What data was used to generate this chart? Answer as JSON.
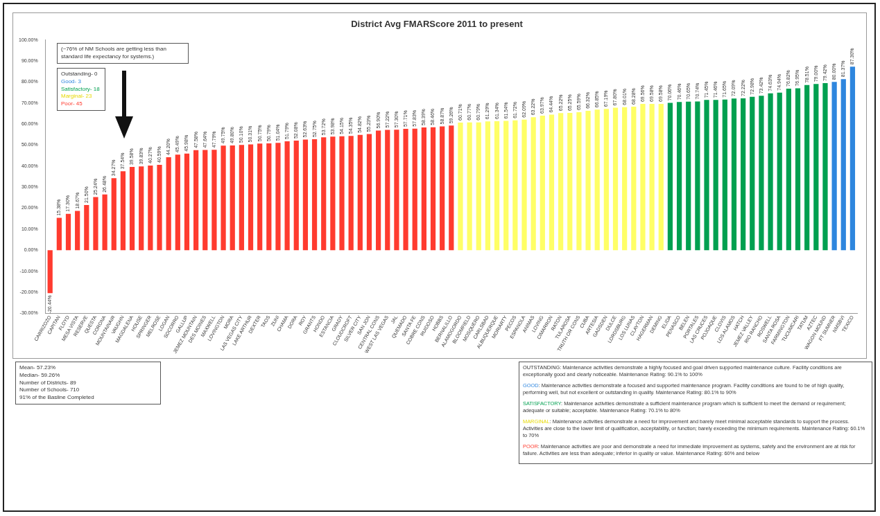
{
  "chart_data": {
    "type": "bar",
    "title": "District Avg FMARScore 2011 to present",
    "categories": [
      "CARRIZOZO",
      "CAPITAN",
      "FLOYD",
      "MESA VISTA",
      "RESERVE",
      "QUESTA",
      "CORONA",
      "MOUNTAINAIR",
      "VAUGHN",
      "MAGDALENA",
      "HOUSE",
      "SPRINGER",
      "MELROSE",
      "LOGAN",
      "SOCORRO",
      "GALLUP",
      "JEMEZ MOUNTAIN",
      "DES MOINES",
      "MAXWELL",
      "LOVINGTON",
      "MORA",
      "LAS VEGAS CITY",
      "LAKE ARTHUR",
      "DEXTER",
      "TAOS",
      "ZUNI",
      "CHAMA",
      "DORA",
      "ROY",
      "GRANTS",
      "HONDO",
      "ESTANCIA",
      "GRADY",
      "CLOUDCROFT",
      "SILVER CITY",
      "SAN JON",
      "CENTRAL CONS",
      "WEST LAS VEGAS",
      "JAL",
      "QUEMADO",
      "SANTA FE",
      "COBRE CONS",
      "RUIDOSO",
      "HOBBS",
      "BERNALILLO",
      "ALAMOGORDO",
      "BLOOMFIELD",
      "MOSQUERO",
      "CARLSBAD",
      "ALBUQUERQUE",
      "MORIARTY",
      "PECOS",
      "ESPANOLA",
      "ANIMAS",
      "LOVING",
      "CIMARRON",
      "RATON",
      "TULAROSA",
      "TRUTH OR CONS",
      "CUBA",
      "ARTESIA",
      "GADSDEN",
      "DULCE",
      "LORDSBURG",
      "LOS LUNAS",
      "CLAYTON",
      "HAGERMAN",
      "DEMING",
      "ELIDA",
      "PENASCO",
      "BELEN",
      "PORTALES",
      "LAS CRUCES",
      "POJOAQUE",
      "CLOVIS",
      "LOS ALAMOS",
      "HATCH",
      "JEMEZ VALLEY",
      "RIO RANCHO",
      "ROSWELL",
      "SANTA ROSA",
      "FARMINGTON",
      "TUCUMCARI",
      "TATUM",
      "AZTEC",
      "WAGON MOUND",
      "FT SUMNER",
      "NMSBVI",
      "TEXICO"
    ],
    "values": [
      -20.44,
      15.38,
      17.3,
      18.67,
      21.5,
      25.24,
      26.48,
      34.27,
      37.54,
      39.58,
      39.83,
      40.27,
      40.59,
      44.2,
      45.49,
      45.98,
      47.58,
      47.64,
      47.79,
      49.75,
      49.8,
      50.1,
      50.31,
      50.75,
      50.79,
      51.04,
      51.79,
      52.08,
      52.63,
      52.75,
      53.72,
      53.98,
      54.15,
      54.35,
      54.82,
      55.23,
      56.9,
      57.22,
      57.3,
      57.71,
      57.83,
      58.39,
      58.46,
      58.87,
      59.26,
      60.71,
      60.77,
      60.79,
      61.29,
      61.34,
      61.54,
      61.72,
      62.09,
      63.22,
      63.97,
      64.44,
      65.22,
      65.25,
      65.59,
      66.32,
      66.85,
      67.19,
      67.8,
      68.01,
      68.28,
      69.56,
      69.58,
      69.58,
      70.06,
      70.46,
      70.65,
      70.74,
      71.45,
      71.46,
      71.65,
      72.09,
      72.22,
      72.98,
      73.42,
      74.63,
      74.94,
      76.82,
      76.95,
      78.51,
      79.0,
      79.42,
      80.0,
      81.37,
      87.3
    ],
    "value_labels": [
      "-20.44%",
      "15.38%",
      "17.30%",
      "18.67%",
      "21.50%",
      "25.24%",
      "26.48%",
      "34.27%",
      "37.54%",
      "39.58%",
      "39.83%",
      "40.27%",
      "40.59%",
      "44.20%",
      "45.49%",
      "45.98%",
      "47.58%",
      "47.64%",
      "47.79%",
      "49.75%",
      "49.80%",
      "50.10%",
      "50.31%",
      "50.75%",
      "50.79%",
      "51.04%",
      "51.79%",
      "52.08%",
      "52.63%",
      "52.75%",
      "53.72%",
      "53.98%",
      "54.15%",
      "54.35%",
      "54.82%",
      "55.23%",
      "56.90%",
      "57.22%",
      "57.30%",
      "57.71%",
      "57.83%",
      "58.39%",
      "58.46%",
      "58.87%",
      "59.26%",
      "60.71%",
      "60.77%",
      "60.79%",
      "61.29%",
      "61.34%",
      "61.54%",
      "61.72%",
      "62.09%",
      "63.22%",
      "63.97%",
      "64.44%",
      "65.22%",
      "65.25%",
      "65.59%",
      "66.32%",
      "66.85%",
      "67.19%",
      "67.80%",
      "68.01%",
      "68.28%",
      "69.56%",
      "69.58%",
      "69.58%",
      "70.06%",
      "70.46%",
      "70.65%",
      "70.74%",
      "71.45%",
      "71.46%",
      "71.65%",
      "72.09%",
      "72.22%",
      "72.98%",
      "73.42%",
      "74.63%",
      "74.94%",
      "76.82%",
      "76.95%",
      "78.51%",
      "79.00%",
      "79.42%",
      "80.00%",
      "81.37%",
      "87.30%"
    ],
    "colors": [
      "#ff3b2f",
      "#ff3b2f",
      "#ff3b2f",
      "#ff3b2f",
      "#ff3b2f",
      "#ff3b2f",
      "#ff3b2f",
      "#ff3b2f",
      "#ff3b2f",
      "#ff3b2f",
      "#ff3b2f",
      "#ff3b2f",
      "#ff3b2f",
      "#ff3b2f",
      "#ff3b2f",
      "#ff3b2f",
      "#ff3b2f",
      "#ff3b2f",
      "#ff3b2f",
      "#ff3b2f",
      "#ff3b2f",
      "#ff3b2f",
      "#ff3b2f",
      "#ff3b2f",
      "#ff3b2f",
      "#ff3b2f",
      "#ff3b2f",
      "#ff3b2f",
      "#ff3b2f",
      "#ff3b2f",
      "#ff3b2f",
      "#ff3b2f",
      "#ff3b2f",
      "#ff3b2f",
      "#ff3b2f",
      "#ff3b2f",
      "#ff3b2f",
      "#ff3b2f",
      "#ff3b2f",
      "#ff3b2f",
      "#ff3b2f",
      "#ff3b2f",
      "#ff3b2f",
      "#ff3b2f",
      "#ff3b2f",
      "#ffff66",
      "#ffff66",
      "#ffff66",
      "#ffff66",
      "#ffff66",
      "#ffff66",
      "#ffff66",
      "#ffff66",
      "#ffff66",
      "#ffff66",
      "#ffff66",
      "#ffff66",
      "#ffff66",
      "#ffff66",
      "#ffff66",
      "#ffff66",
      "#ffff66",
      "#ffff66",
      "#ffff66",
      "#ffff66",
      "#ffff66",
      "#ffff66",
      "#ffff66",
      "#00a050",
      "#00a050",
      "#00a050",
      "#00a050",
      "#00a050",
      "#00a050",
      "#00a050",
      "#00a050",
      "#00a050",
      "#00a050",
      "#00a050",
      "#00a050",
      "#00a050",
      "#00a050",
      "#00a050",
      "#00a050",
      "#00a050",
      "#00a050",
      "#2e86de",
      "#2e86de",
      "#2e86de"
    ],
    "ylim": [
      -30,
      100
    ],
    "yticks": [
      {
        "value": -30,
        "label": "-30.00%"
      },
      {
        "value": -20,
        "label": "-20.00%"
      },
      {
        "value": -10,
        "label": "-10.00%"
      },
      {
        "value": 0,
        "label": "0.00%"
      },
      {
        "value": 10,
        "label": "10.00%"
      },
      {
        "value": 20,
        "label": "20.00%"
      },
      {
        "value": 30,
        "label": "30.00%"
      },
      {
        "value": 40,
        "label": "40.00%"
      },
      {
        "value": 50,
        "label": "50.00%"
      },
      {
        "value": 60,
        "label": "60.00%"
      },
      {
        "value": 70,
        "label": "70.00%"
      },
      {
        "value": 80,
        "label": "80.00%"
      },
      {
        "value": 90,
        "label": "90.00%"
      },
      {
        "value": 100,
        "label": "100.00%"
      }
    ],
    "grid": false,
    "legend": false,
    "annotations": [
      "(~76% of NM Schools are getting less than standard life expectancy for systems.)",
      "Outstanding- 0",
      "Good- 3",
      "Satisfactory- 18",
      "Marginal- 23",
      "Poor- 45",
      "Mean- 57.23%",
      "Median- 59.26%",
      "Number of Districts- 89",
      "Number of Schools- 710",
      "91% of the Basline Completed",
      "OUTSTANDING: Maintenance activities demonstrate a highly focused and goal driven supported maintenance culture. Facility conditions are exceptionally good and clearly noticeable. Maintenance Rating: 90.1% to 100%",
      "GOOD: Maintenance activities demonstrate a focused and supported maintenance program. Facility conditions are found to be of high quality, performing well, but not excellent or outstanding in quality. Maintenance Rating: 80.1% to 90%",
      "SATISFACTORY: Maintenance activities demonstrate a sufficient maintenance program which is sufficient to meet the demand or requirement; adequate or suitable; acceptable. Maintenance Rating: 70.1% to 80%",
      "MARGINAL: Maintenance activities demonstrate a need for improvement and barely meet minimal acceptable standards to support the process. Activities are close to the lower limit of qualification, acceptability, or function; barely exceeding the minimum requirements. Maintenance Rating: 60.1% to 70%",
      "POOR: Maintenance activities are poor and demonstrate a need for immediate improvement as systems, safety and the environment are at risk for failure. Activities are less than adequate; inferior in quality or value. Maintenance Rating: 60% and below"
    ]
  }
}
